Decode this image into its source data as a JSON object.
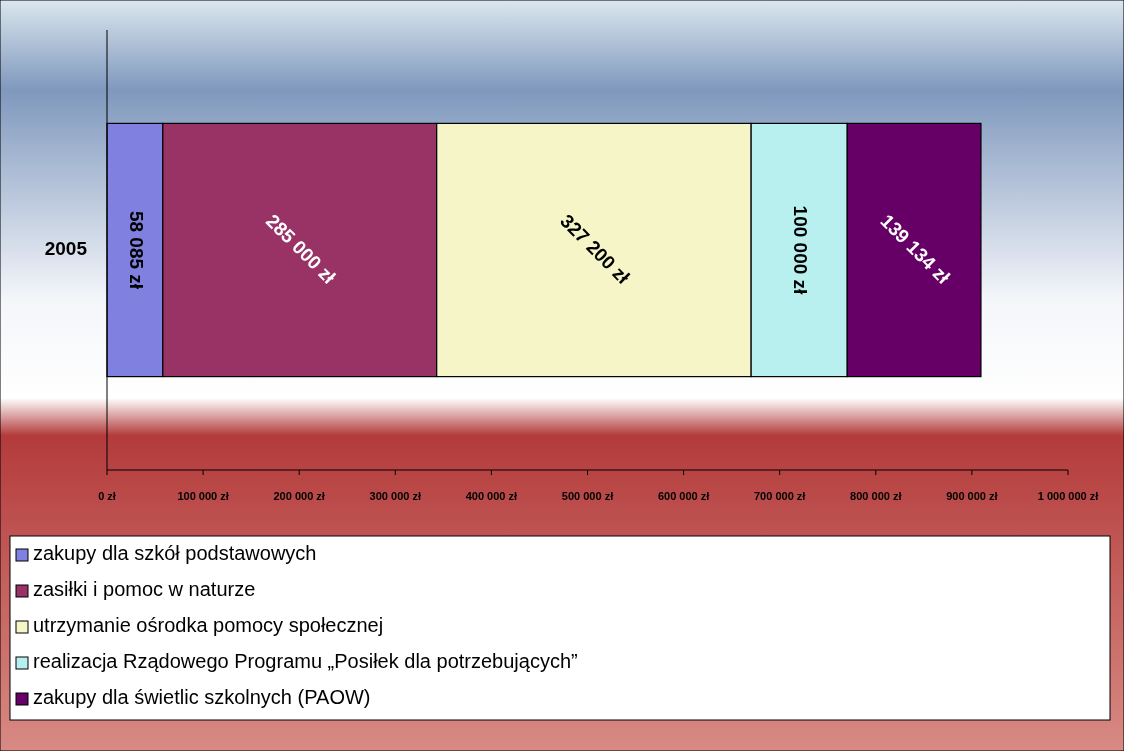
{
  "chart_data": {
    "type": "bar",
    "orientation": "horizontal",
    "stacked": true,
    "categories": [
      "2005"
    ],
    "series": [
      {
        "name": "zakupy dla szkół podstawowych",
        "color": "#8080e0",
        "values": [
          58085
        ],
        "value_labels": [
          "58 085 zł"
        ]
      },
      {
        "name": "zasiłki i pomoc w naturze",
        "color": "#993366",
        "values": [
          285000
        ],
        "value_labels": [
          "285 000 zł"
        ]
      },
      {
        "name": "utrzymanie ośrodka pomocy społecznej",
        "color": "#f5f5c8",
        "values": [
          327200
        ],
        "value_labels": [
          "327 200 zł"
        ]
      },
      {
        "name": "realizacja Rządowego Programu „Posiłek dla potrzebujących”",
        "color": "#b8f0f0",
        "values": [
          100000
        ],
        "value_labels": [
          "100 000 zł"
        ]
      },
      {
        "name": "zakupy dla świetlic szkolnych (PAOW)",
        "color": "#660066",
        "values": [
          139134
        ],
        "value_labels": [
          "139 134 zł"
        ]
      }
    ],
    "xlim": [
      0,
      1000000
    ],
    "xticks": [
      {
        "value": 0,
        "label": "0 zł"
      },
      {
        "value": 100000,
        "label": "100 000 zł"
      },
      {
        "value": 200000,
        "label": "200 000 zł"
      },
      {
        "value": 300000,
        "label": "300 000 zł"
      },
      {
        "value": 400000,
        "label": "400 000 zł"
      },
      {
        "value": 500000,
        "label": "500 000 zł"
      },
      {
        "value": 600000,
        "label": "600 000 zł"
      },
      {
        "value": 700000,
        "label": "700 000 zł"
      },
      {
        "value": 800000,
        "label": "800 000 zł"
      },
      {
        "value": 900000,
        "label": "900 000 zł"
      },
      {
        "value": 1000000,
        "label": "1 000 000 zł"
      }
    ],
    "grid": false,
    "legend": "bottom"
  }
}
